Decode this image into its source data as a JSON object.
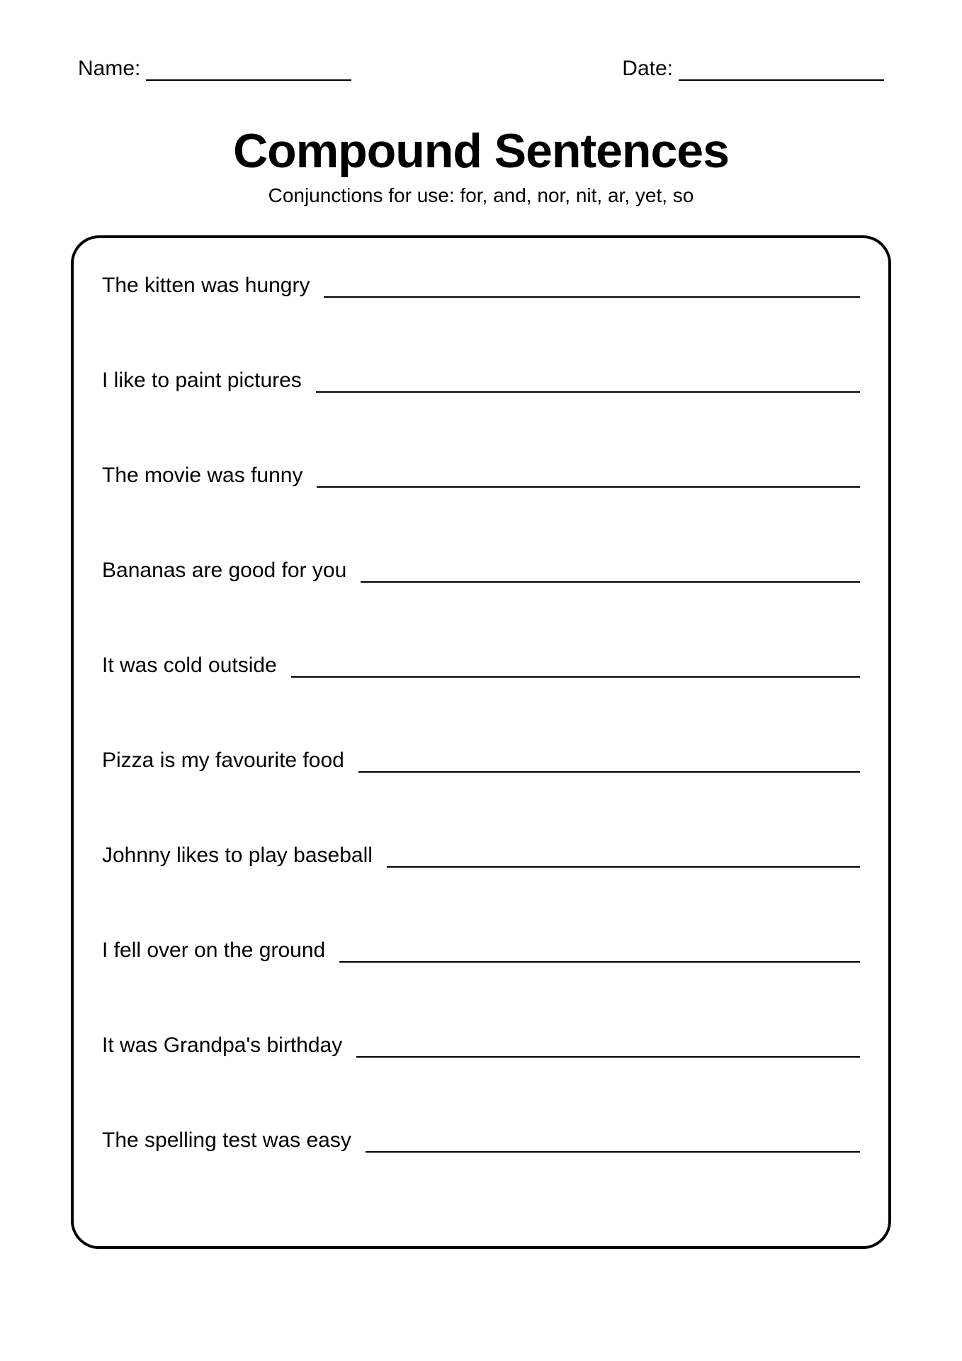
{
  "header": {
    "name_label": "Name:",
    "date_label": "Date:"
  },
  "title": "Compound Sentences",
  "subtitle": "Conjunctions for use: for, and, nor, nit, ar, yet, so",
  "prompts": [
    "The kitten was hungry",
    "I like to paint pictures",
    "The movie was funny",
    "Bananas are good for you",
    "It was cold outside",
    "Pizza is my favourite food",
    "Johnny likes to play baseball",
    "I fell over on the ground",
    "It was Grandpa's birthday",
    "The spelling test was easy"
  ],
  "colors": {
    "background": "#ffffff",
    "text": "#000000",
    "border": "#000000",
    "line": "#000000"
  },
  "typography": {
    "title_fontsize": 68,
    "subtitle_fontsize": 28,
    "body_fontsize": 30,
    "header_fontsize": 30
  }
}
